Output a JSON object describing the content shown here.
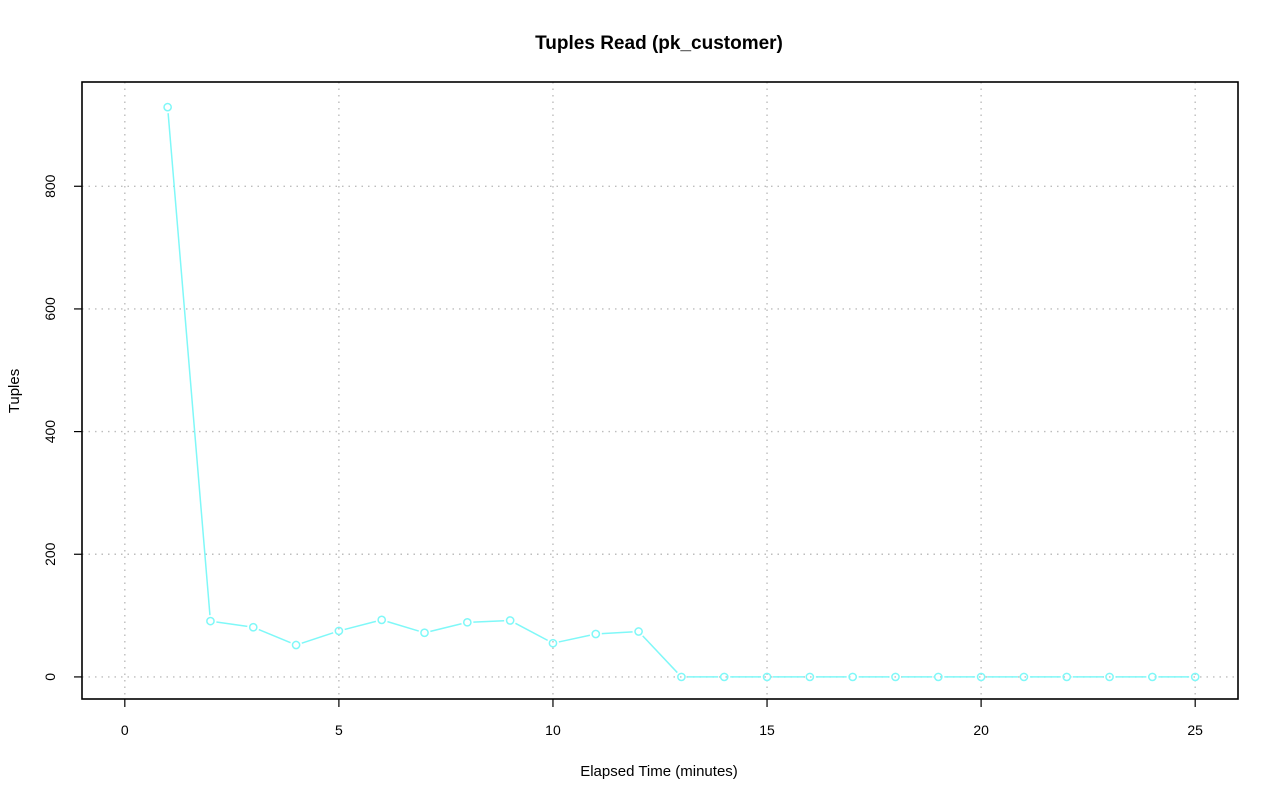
{
  "chart_data": {
    "type": "line",
    "title": "Tuples Read (pk_customer)",
    "xlabel": "Elapsed Time (minutes)",
    "ylabel": "Tuples",
    "xlim": [
      -1,
      26
    ],
    "ylim": [
      -36,
      970
    ],
    "xticks": [
      0,
      5,
      10,
      15,
      20,
      25
    ],
    "yticks": [
      0,
      200,
      400,
      600,
      800
    ],
    "grid": true,
    "series_color": "#7ff8f8",
    "series": [
      {
        "x": [
          1,
          2,
          3,
          4,
          5,
          6,
          7,
          8,
          9,
          10,
          11,
          12,
          13,
          14,
          15,
          16,
          17,
          18,
          19,
          20,
          21,
          22,
          23,
          24,
          25
        ],
        "values": [
          929,
          91,
          81,
          52,
          75,
          93,
          72,
          89,
          92,
          55,
          70,
          74,
          0,
          0,
          0,
          0,
          0,
          0,
          0,
          0,
          0,
          0,
          0,
          0,
          0
        ]
      }
    ]
  }
}
